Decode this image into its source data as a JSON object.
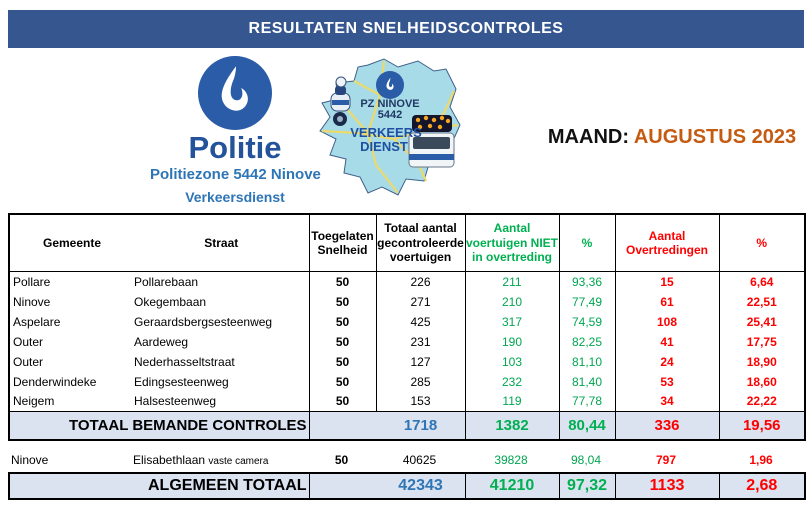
{
  "banner": {
    "title": "RESULTATEN SNELHEIDSCONTROLES"
  },
  "logo": {
    "brand": "Politie",
    "zone": "Politiezone 5442 Ninove",
    "service": "Verkeersdienst"
  },
  "map_badge": {
    "line1": "PZ NINOVE",
    "line2": "5442",
    "line3": "VERKEERS",
    "line4": "DIENST"
  },
  "period": {
    "label": "MAAND:",
    "value": "AUGUSTUS 2023"
  },
  "colors": {
    "banner_blue": "#35568F",
    "brand_blue": "#24539B",
    "zone_blue": "#2E75B6",
    "accent_orange": "#C55A11",
    "green": "#00B050",
    "red": "#FF0000",
    "total_blue": "#2E75B6",
    "total_row_bg": "#DBE2F0",
    "map_fill": "#A7DBE8"
  },
  "table": {
    "headers": {
      "gemeente": "Gemeente",
      "straat": "Straat",
      "toegelaten": "Toegelaten Snelheid",
      "totaal": "Totaal aantal gecontroleerde voertuigen",
      "niet": "Aantal voertuigen NIET in overtreding",
      "pct_niet": "%",
      "overtredingen": "Aantal Overtredingen",
      "pct_overtredingen": "%"
    },
    "rows": [
      {
        "gemeente": "Pollare",
        "straat": "Pollarebaan",
        "snelheid": "50",
        "totaal": "226",
        "niet": "211",
        "pct_niet": "93,36",
        "overtredingen": "15",
        "pct_over": "6,64"
      },
      {
        "gemeente": "Ninove",
        "straat": "Okegembaan",
        "snelheid": "50",
        "totaal": "271",
        "niet": "210",
        "pct_niet": "77,49",
        "overtredingen": "61",
        "pct_over": "22,51"
      },
      {
        "gemeente": "Aspelare",
        "straat": "Geraardsbergsesteenweg",
        "snelheid": "50",
        "totaal": "425",
        "niet": "317",
        "pct_niet": "74,59",
        "overtredingen": "108",
        "pct_over": "25,41"
      },
      {
        "gemeente": "Outer",
        "straat": "Aardeweg",
        "snelheid": "50",
        "totaal": "231",
        "niet": "190",
        "pct_niet": "82,25",
        "overtredingen": "41",
        "pct_over": "17,75"
      },
      {
        "gemeente": "Outer",
        "straat": "Nederhasseltstraat",
        "snelheid": "50",
        "totaal": "127",
        "niet": "103",
        "pct_niet": "81,10",
        "overtredingen": "24",
        "pct_over": "18,90"
      },
      {
        "gemeente": "Denderwindeke",
        "straat": "Edingsesteenweg",
        "snelheid": "50",
        "totaal": "285",
        "niet": "232",
        "pct_niet": "81,40",
        "overtredingen": "53",
        "pct_over": "18,60"
      },
      {
        "gemeente": "Neigem",
        "straat": "Halsesteenweg",
        "snelheid": "50",
        "totaal": "153",
        "niet": "119",
        "pct_niet": "77,78",
        "overtredingen": "34",
        "pct_over": "22,22"
      }
    ],
    "manned_total": {
      "label": "TOTAAL BEMANDE CONTROLES",
      "totaal": "1718",
      "niet": "1382",
      "pct_niet": "80,44",
      "overtredingen": "336",
      "pct_over": "19,56"
    },
    "camera_row": {
      "gemeente": "Ninove",
      "straat": "Elisabethlaan",
      "straat_note": "vaste camera",
      "snelheid": "50",
      "totaal": "40625",
      "niet": "39828",
      "pct_niet": "98,04",
      "overtredingen": "797",
      "pct_over": "1,96"
    },
    "grand_total": {
      "label": "ALGEMEEN TOTAAL",
      "totaal": "42343",
      "niet": "41210",
      "pct_niet": "97,32",
      "overtredingen": "1133",
      "pct_over": "2,68"
    }
  }
}
